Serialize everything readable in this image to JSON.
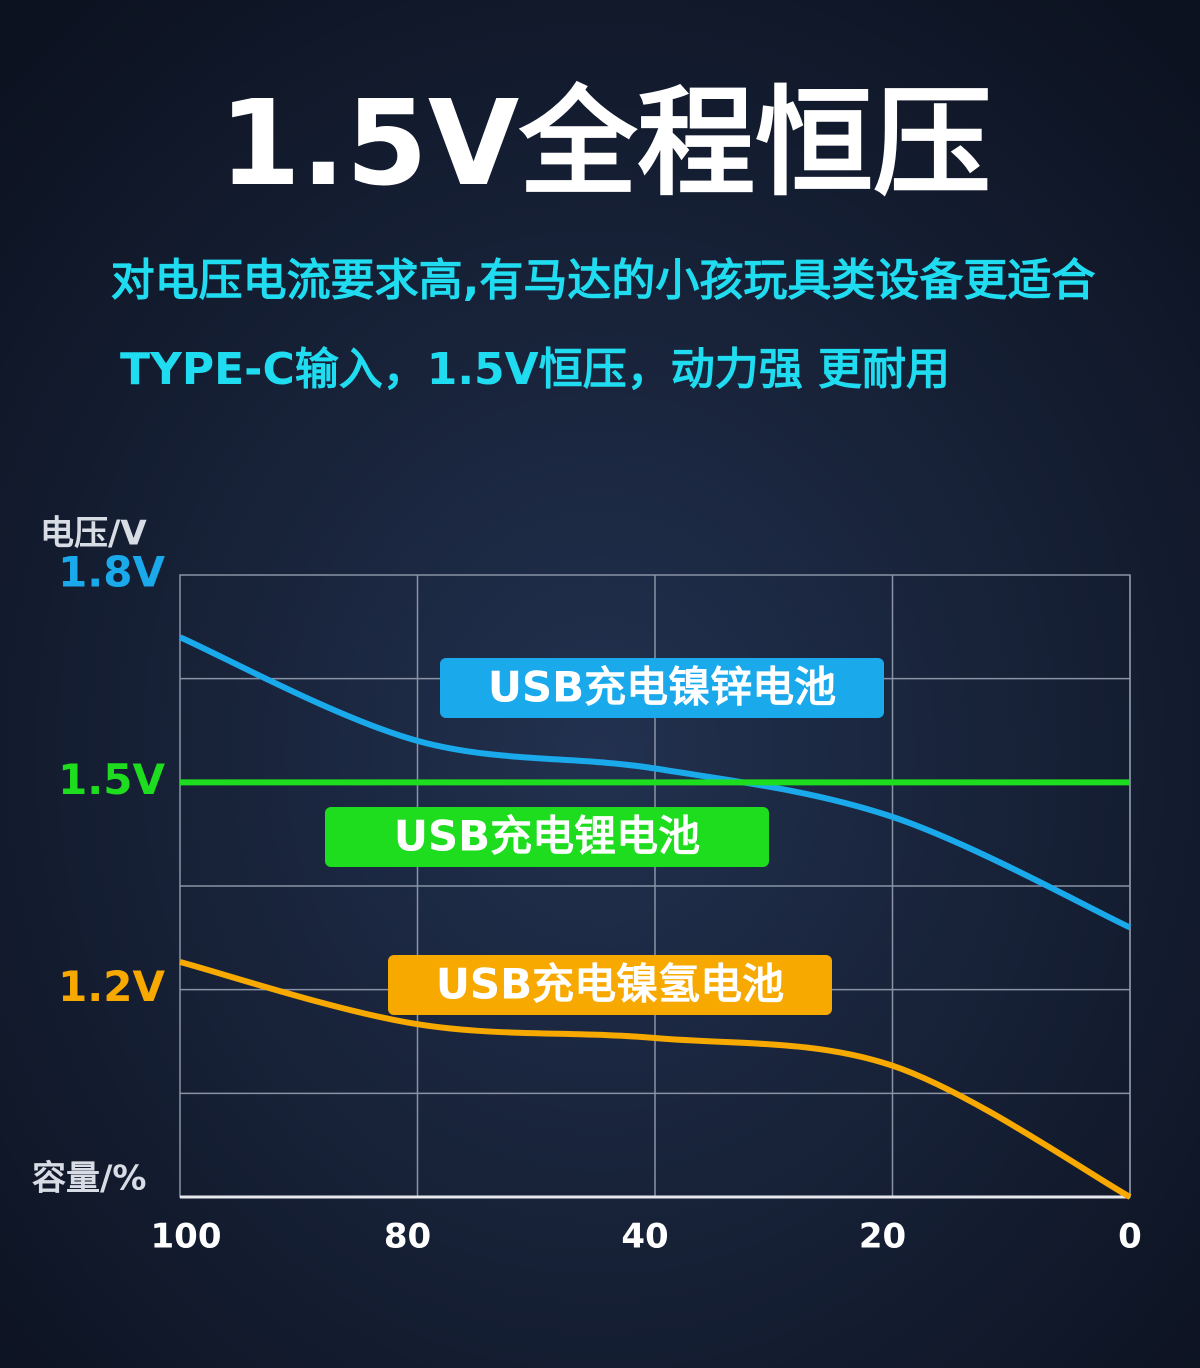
{
  "chart_data": {
    "type": "line",
    "title": "1.5V全程恒压",
    "subtitle": "对电压电流要求高,有马达的小孩玩具类设备更适合",
    "subtitle2": "TYPE-C输入，1.5V恒压，动力强 更耐用",
    "y_label": "电压/V",
    "x_label": "容量/%",
    "categories": [
      "100",
      "80",
      "40",
      "20",
      "0"
    ],
    "series": [
      {
        "name": "USB充电镍锌电池",
        "color": "#1aa9ea",
        "values": [
          1.71,
          1.56,
          1.52,
          1.45,
          1.29
        ]
      },
      {
        "name": "USB充电锂电池",
        "color": "#1edc1e",
        "values": [
          1.5,
          1.5,
          1.5,
          1.5,
          1.5
        ]
      },
      {
        "name": "USB充电镍氢电池",
        "color": "#f7a900",
        "values": [
          1.24,
          1.15,
          1.13,
          1.09,
          0.9
        ]
      }
    ],
    "ylim": [
      0.9,
      1.8
    ],
    "yticks": [
      {
        "value": 1.2,
        "label": "1.2V"
      },
      {
        "value": 1.5,
        "label": "1.5V"
      },
      {
        "value": 1.8,
        "label": "1.8V"
      }
    ],
    "ytick_colors": [
      "#f7a900",
      "#1edc1e",
      "#1aa9ea"
    ],
    "grid": true
  }
}
